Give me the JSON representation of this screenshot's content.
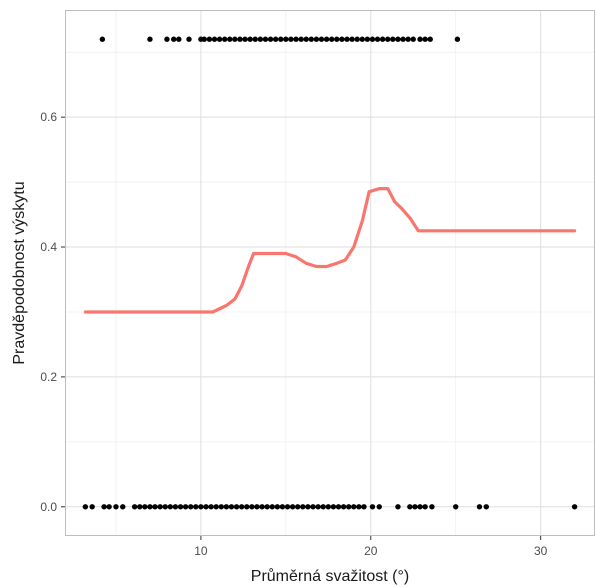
{
  "chart_data": {
    "type": "line",
    "xlabel": "Průměrná svažitost (°)",
    "ylabel": "Pravděpodobnost výskytu",
    "xlim": [
      2.0,
      33.2
    ],
    "ylim": [
      -0.045,
      0.765
    ],
    "x_ticks": [
      10,
      20,
      30
    ],
    "x_tick_labels": [
      "10",
      "20",
      "30"
    ],
    "y_ticks": [
      0.0,
      0.2,
      0.4,
      0.6
    ],
    "y_tick_labels": [
      "0.0",
      "0.2",
      "0.4",
      "0.6"
    ],
    "grid": true,
    "legend": "none",
    "colors": {
      "line": "#f8766d",
      "points": "#000000",
      "grid": "#dedede",
      "border": "#bdbdbd"
    },
    "series": [
      {
        "type": "line",
        "x": [
          3.2,
          6,
          9,
          10,
          10.7,
          11.5,
          12,
          12.4,
          12.8,
          13.1,
          14,
          15,
          15.6,
          16.2,
          16.8,
          17.4,
          18,
          18.5,
          19,
          19.5,
          19.9,
          20.5,
          21,
          21.4,
          21.8,
          22.3,
          22.8,
          25,
          28,
          32
        ],
        "y": [
          0.3,
          0.3,
          0.3,
          0.3,
          0.3,
          0.31,
          0.32,
          0.34,
          0.37,
          0.39,
          0.39,
          0.39,
          0.385,
          0.375,
          0.37,
          0.37,
          0.375,
          0.38,
          0.4,
          0.44,
          0.485,
          0.49,
          0.49,
          0.47,
          0.46,
          0.445,
          0.425,
          0.425,
          0.425,
          0.425
        ]
      },
      {
        "type": "scatter",
        "name": "",
        "y_value": 0.72,
        "x": [
          4.2,
          7.0,
          8.0,
          8.4,
          8.7,
          9.3,
          10.0,
          10.2,
          10.5,
          10.8,
          11.1,
          11.4,
          11.7,
          12.0,
          12.3,
          12.6,
          12.9,
          13.2,
          13.5,
          13.8,
          14.1,
          14.4,
          14.7,
          15.0,
          15.3,
          15.6,
          15.9,
          16.2,
          16.5,
          16.8,
          17.1,
          17.4,
          17.7,
          18.0,
          18.3,
          18.6,
          18.9,
          19.2,
          19.5,
          19.8,
          20.1,
          20.4,
          20.7,
          21.0,
          21.3,
          21.6,
          21.9,
          22.2,
          22.5,
          22.9,
          23.2,
          23.5,
          25.1
        ]
      },
      {
        "type": "scatter",
        "name": "",
        "y_value": 0.0,
        "x": [
          3.2,
          3.6,
          4.3,
          4.6,
          5.0,
          5.4,
          6.1,
          6.4,
          6.7,
          7.0,
          7.3,
          7.6,
          7.9,
          8.2,
          8.5,
          8.8,
          9.1,
          9.4,
          9.7,
          10.0,
          10.3,
          10.6,
          10.9,
          11.2,
          11.5,
          11.8,
          12.1,
          12.4,
          12.7,
          13.0,
          13.3,
          13.6,
          13.9,
          14.2,
          14.5,
          14.8,
          15.1,
          15.4,
          15.7,
          16.0,
          16.3,
          16.6,
          16.9,
          17.2,
          17.5,
          17.8,
          18.1,
          18.4,
          18.7,
          19.0,
          19.3,
          19.6,
          20.1,
          20.5,
          21.6,
          22.3,
          22.6,
          22.9,
          23.2,
          23.6,
          25.0,
          26.4,
          26.8,
          32.0
        ]
      }
    ]
  }
}
